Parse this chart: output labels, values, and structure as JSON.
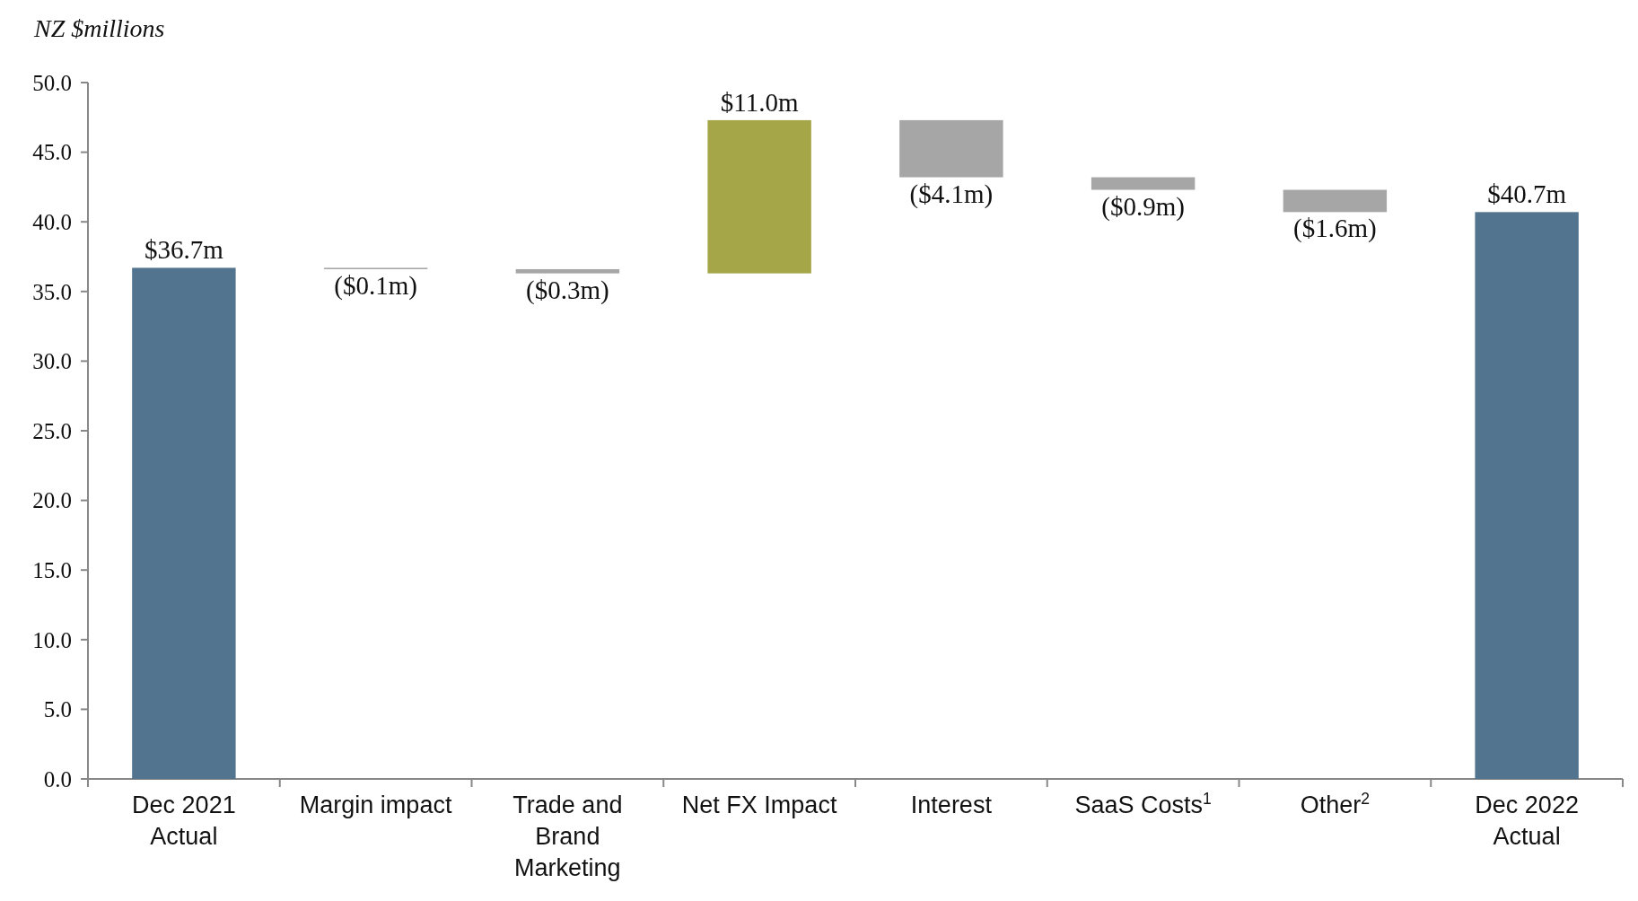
{
  "chart_data": {
    "type": "bar",
    "ylabel": "NZ $millions",
    "categories": [
      "Dec 2021\nActual",
      "Margin impact",
      "Trade and\nBrand\nMarketing",
      "Net FX Impact",
      "Interest",
      "SaaS Costs$^{1}$",
      "Other$^{2}$",
      "Dec 2022\nActual"
    ],
    "values": [
      36.7,
      -0.1,
      -0.3,
      11.0,
      -4.1,
      -0.9,
      -1.6,
      40.7
    ],
    "base": [
      0,
      36.7,
      36.6,
      36.3,
      47.3,
      43.2,
      42.3,
      0
    ],
    "colors": [
      "#52748e",
      "#a6a6a6",
      "#a6a6a6",
      "#a4a648",
      "#a6a6a6",
      "#a6a6a6",
      "#a6a6a6",
      "#52748e"
    ],
    "value_labels": [
      "$36.7m",
      "($0.1m)",
      "($0.3m)",
      "$11.0m",
      "($4.1m)",
      "($0.9m)",
      "($1.6m)",
      "$40.7m"
    ],
    "ylim": [
      0,
      50
    ],
    "yticks": [
      {
        "value": 0,
        "label": "0.0"
      },
      {
        "value": 5,
        "label": "5.0"
      },
      {
        "value": 10,
        "label": "10.0"
      },
      {
        "value": 15,
        "label": "15.0"
      },
      {
        "value": 20,
        "label": "20.0"
      },
      {
        "value": 25,
        "label": "25.0"
      },
      {
        "value": 30,
        "label": "30.0"
      },
      {
        "value": 35,
        "label": "35.0"
      },
      {
        "value": 40,
        "label": "40.0"
      },
      {
        "value": 45,
        "label": "45.0"
      },
      {
        "value": 50,
        "label": "50.0"
      }
    ]
  }
}
